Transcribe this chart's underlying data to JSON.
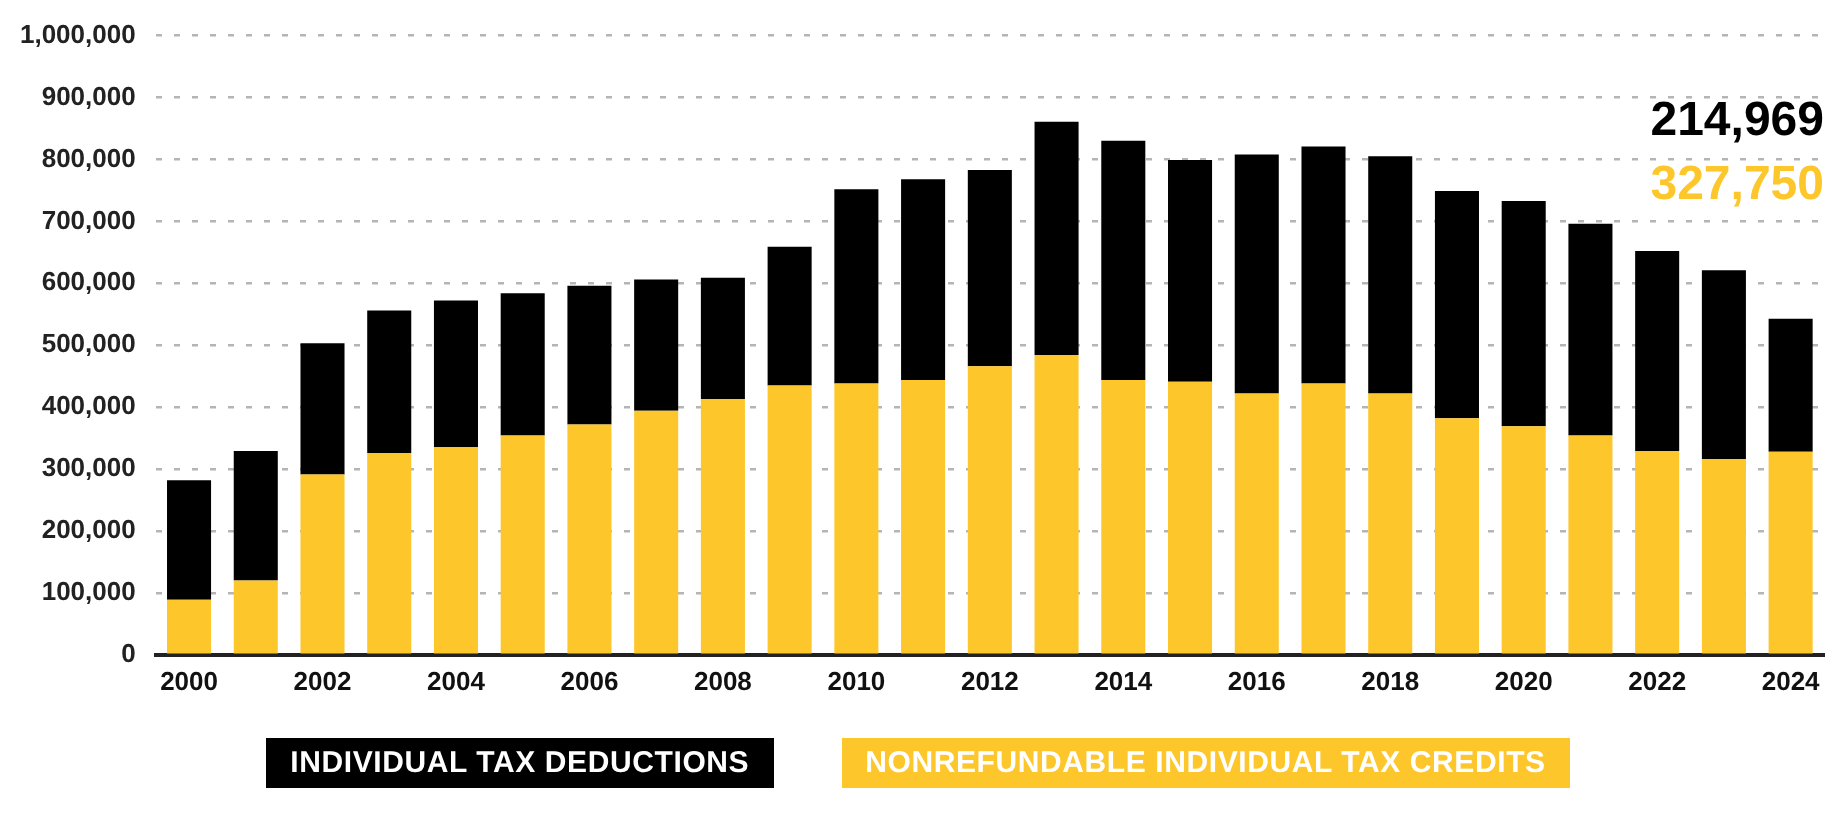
{
  "chart_data": {
    "type": "bar",
    "stacked": true,
    "categories": [
      "2000",
      null,
      "2002",
      null,
      "2004",
      null,
      "2006",
      null,
      "2008",
      null,
      "2010",
      null,
      "2012",
      null,
      "2014",
      null,
      "2016",
      null,
      "2018",
      null,
      "2020",
      null,
      "2022",
      null,
      "2024"
    ],
    "series": [
      {
        "name": "NONREFUNDABLE INDIVIDUAL TAX CREDITS",
        "color": "#fdc62b",
        "values": [
          89000,
          120000,
          291000,
          326000,
          335000,
          354000,
          372000,
          394000,
          413000,
          435000,
          438000,
          444000,
          466000,
          484000,
          444000,
          441000,
          422000,
          438000,
          422000,
          382000,
          369000,
          354000,
          329000,
          316000,
          327750
        ]
      },
      {
        "name": "INDIVIDUAL TAX DEDUCTIONS",
        "color": "#000000",
        "values": [
          193000,
          209000,
          212000,
          230000,
          237000,
          230000,
          224000,
          212000,
          196000,
          224000,
          314000,
          324000,
          317000,
          377000,
          386000,
          358000,
          386000,
          383000,
          383000,
          367000,
          364000,
          342000,
          323000,
          305000,
          214969
        ]
      }
    ],
    "annotations": [
      "214,969",
      "327,750"
    ],
    "ylim": [
      0,
      1000000
    ],
    "yticks": [
      0,
      {
        "value": 100000,
        "label": "100,000"
      },
      {
        "value": 200000,
        "label": "200,000"
      },
      {
        "value": 300000,
        "label": "300,000"
      },
      {
        "value": 400000,
        "label": "400,000"
      },
      {
        "value": 500000,
        "label": "500,000"
      },
      {
        "value": 600000,
        "label": "600,000"
      },
      {
        "value": 700000,
        "label": "700,000"
      },
      {
        "value": 800000,
        "label": "800,000"
      },
      {
        "value": 900000,
        "label": "900,000"
      },
      {
        "value": 1000000,
        "label": "1,000,000"
      }
    ],
    "grid": "y",
    "legend": "bottom"
  }
}
